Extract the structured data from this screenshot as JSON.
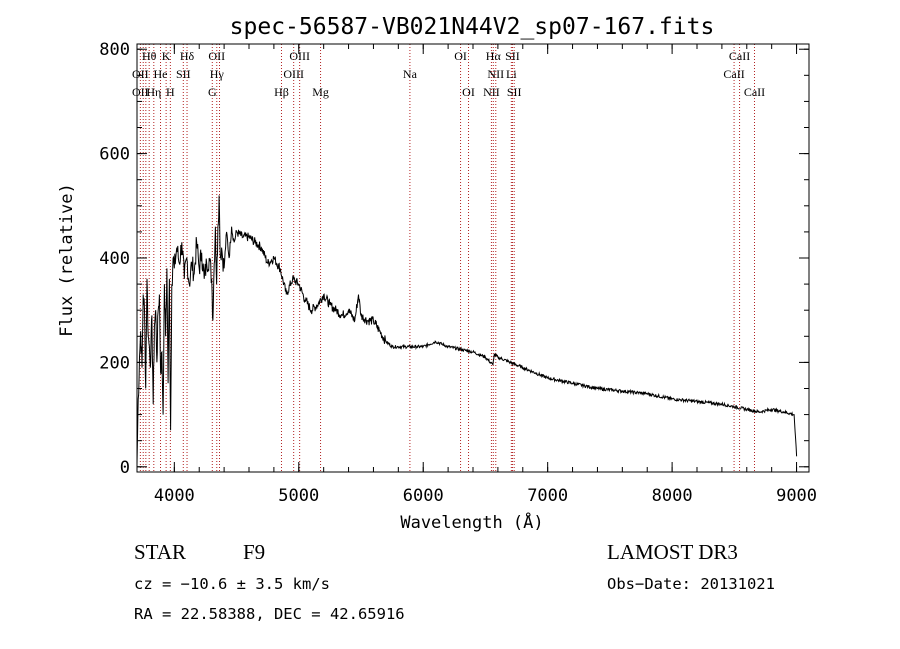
{
  "chart_data": {
    "type": "line",
    "title": "spec-56587-VB021N44V2_sp07-167.fits",
    "xlabel": "Wavelength (Å)",
    "ylabel": "Flux (relative)",
    "xlim": [
      3700,
      9100
    ],
    "ylim": [
      -10,
      810
    ],
    "xticks": [
      4000,
      5000,
      6000,
      7000,
      8000,
      9000
    ],
    "yticks": [
      0,
      200,
      400,
      600,
      800
    ],
    "line_color": "#000000",
    "marker_color": "#b22222",
    "series": [
      {
        "name": "spectrum",
        "x": [
          3700,
          3710,
          3720,
          3730,
          3740,
          3750,
          3760,
          3770,
          3780,
          3790,
          3800,
          3810,
          3820,
          3830,
          3840,
          3850,
          3860,
          3870,
          3880,
          3890,
          3900,
          3910,
          3920,
          3930,
          3940,
          3950,
          3960,
          3970,
          3980,
          3990,
          4000,
          4020,
          4040,
          4060,
          4080,
          4100,
          4120,
          4140,
          4160,
          4180,
          4200,
          4220,
          4240,
          4260,
          4280,
          4300,
          4310,
          4320,
          4330,
          4340,
          4350,
          4360,
          4370,
          4380,
          4400,
          4420,
          4440,
          4460,
          4480,
          4500,
          4550,
          4600,
          4650,
          4700,
          4750,
          4800,
          4850,
          4900,
          4950,
          5000,
          5050,
          5100,
          5150,
          5200,
          5250,
          5300,
          5350,
          5400,
          5450,
          5480,
          5500,
          5550,
          5600,
          5650,
          5700,
          5750,
          5800,
          5850,
          5900,
          5950,
          6000,
          6100,
          6200,
          6300,
          6400,
          6500,
          6560,
          6570,
          6600,
          6700,
          6800,
          6900,
          7000,
          7200,
          7400,
          7600,
          7800,
          8000,
          8200,
          8400,
          8500,
          8600,
          8700,
          8800,
          8900,
          8980,
          9000
        ],
        "values": [
          5,
          130,
          210,
          260,
          190,
          330,
          300,
          150,
          360,
          250,
          230,
          200,
          290,
          120,
          270,
          300,
          200,
          300,
          330,
          180,
          220,
          100,
          350,
          250,
          380,
          160,
          360,
          70,
          350,
          400,
          380,
          420,
          390,
          430,
          360,
          400,
          350,
          390,
          370,
          430,
          380,
          410,
          360,
          390,
          400,
          360,
          280,
          390,
          460,
          350,
          460,
          520,
          400,
          420,
          380,
          450,
          400,
          460,
          430,
          450,
          440,
          440,
          430,
          420,
          390,
          400,
          380,
          330,
          360,
          350,
          320,
          300,
          310,
          330,
          310,
          300,
          290,
          300,
          280,
          330,
          290,
          280,
          280,
          260,
          240,
          230,
          230,
          230,
          230,
          230,
          230,
          240,
          230,
          225,
          220,
          210,
          195,
          215,
          210,
          200,
          190,
          180,
          170,
          160,
          150,
          145,
          140,
          130,
          125,
          120,
          115,
          110,
          105,
          110,
          105,
          100,
          20
        ]
      }
    ],
    "line_markers": [
      {
        "label": "Hθ",
        "wl": 3798,
        "row": 1
      },
      {
        "label": "K",
        "wl": 3934,
        "row": 1
      },
      {
        "label": "Hδ",
        "wl": 4102,
        "row": 1
      },
      {
        "label": "OII",
        "wl": 4341,
        "row": 1
      },
      {
        "label": "OIII",
        "wl": 5007,
        "row": 1
      },
      {
        "label": "OI",
        "wl": 6300,
        "row": 1
      },
      {
        "label": "Hα",
        "wl": 6563,
        "row": 1
      },
      {
        "label": "SII",
        "wl": 6717,
        "row": 1
      },
      {
        "label": "CaII",
        "wl": 8542,
        "row": 1
      },
      {
        "label": "OII",
        "wl": 3727,
        "row": 2
      },
      {
        "label": "He",
        "wl": 3889,
        "row": 2
      },
      {
        "label": "SII",
        "wl": 4072,
        "row": 2
      },
      {
        "label": "Hγ",
        "wl": 4341,
        "row": 2
      },
      {
        "label": "OIII",
        "wl": 4959,
        "row": 2
      },
      {
        "label": "Na",
        "wl": 5893,
        "row": 2
      },
      {
        "label": "NII",
        "wl": 6583,
        "row": 2
      },
      {
        "label": "Li",
        "wl": 6708,
        "row": 2
      },
      {
        "label": "CaII",
        "wl": 8498,
        "row": 2
      },
      {
        "label": "OII",
        "wl": 3727,
        "row": 3
      },
      {
        "label": "Hη",
        "wl": 3835,
        "row": 3
      },
      {
        "label": "H",
        "wl": 3968,
        "row": 3
      },
      {
        "label": "G",
        "wl": 4305,
        "row": 3
      },
      {
        "label": "Hβ",
        "wl": 4861,
        "row": 3
      },
      {
        "label": "Mg",
        "wl": 5175,
        "row": 3
      },
      {
        "label": "OI",
        "wl": 6364,
        "row": 3
      },
      {
        "label": "NII",
        "wl": 6548,
        "row": 3
      },
      {
        "label": "SII",
        "wl": 6731,
        "row": 3
      },
      {
        "label": "CaII",
        "wl": 8662,
        "row": 3
      }
    ],
    "marker_lines_wl": [
      3727,
      3750,
      3771,
      3798,
      3835,
      3889,
      3934,
      3968,
      4072,
      4102,
      4305,
      4341,
      4363,
      4861,
      4959,
      5007,
      5175,
      5893,
      6300,
      6364,
      6548,
      6563,
      6583,
      6708,
      6717,
      6731,
      8498,
      8542,
      8662
    ]
  },
  "info": {
    "object_class": "STAR",
    "subclass": "F9",
    "survey": "LAMOST DR3",
    "cz": "cz = −10.6 ± 3.5 km/s",
    "obs_date": "Obs−Date: 20131021",
    "coords": "RA =  22.58388, DEC =  42.65916"
  }
}
